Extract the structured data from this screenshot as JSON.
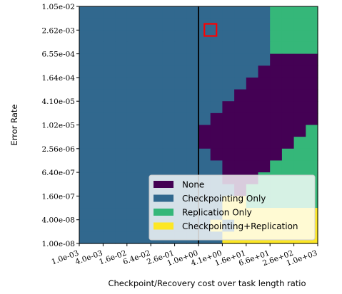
{
  "chart_data": {
    "type": "heatmap",
    "xlabel": "Checkpoint/Recovery cost over task length ratio",
    "ylabel": "Error Rate",
    "x_tick_labels": [
      "1.0e-03",
      "4.0e-03",
      "1.6e-02",
      "6.4e-02",
      "2.6e-01",
      "1.0e+00",
      "4.1e+00",
      "1.6e+01",
      "6.6e+01",
      "2.6e+02",
      "1.0e+03"
    ],
    "y_tick_labels": [
      "1.00e-08",
      "4.00e-08",
      "1.60e-07",
      "6.40e-07",
      "2.56e-06",
      "1.02e-05",
      "4.10e-05",
      "1.64e-04",
      "6.55e-04",
      "2.62e-03",
      "1.05e-02"
    ],
    "x_scale": "log",
    "x_range": [
      0.001,
      1000
    ],
    "y_scale": "log",
    "y_range": [
      1e-08,
      0.0105
    ],
    "grid_size": [
      20,
      20
    ],
    "categories": [
      "None",
      "Checkpointing Only",
      "Replication Only",
      "Checkpointing+Replication"
    ],
    "colors": [
      "#440154",
      "#31688e",
      "#35b779",
      "#fde725"
    ],
    "legend_position": "lower right",
    "vertical_line_x": 1.0,
    "highlight_marker": {
      "x": 2.0,
      "y": 0.0026,
      "color": "#ff0000"
    },
    "rows": [
      "11111111111111112222",
      "11111111111111112222",
      "11111111111111112222",
      "11111111111111112222",
      "11111111111111110000",
      "11111111111111100000",
      "11111111111111000000",
      "11111111111110000000",
      "11111111111100000000",
      "11111111111000000000",
      "11111111110000000002",
      "11111111110000000022",
      "11111111111000000222",
      "11111111111100002222",
      "11111111111100022222",
      "11111111111110222222",
      "11111111111133222222",
      "11111111111133333333",
      "11111111111313333333",
      "11111111111133333333"
    ]
  }
}
